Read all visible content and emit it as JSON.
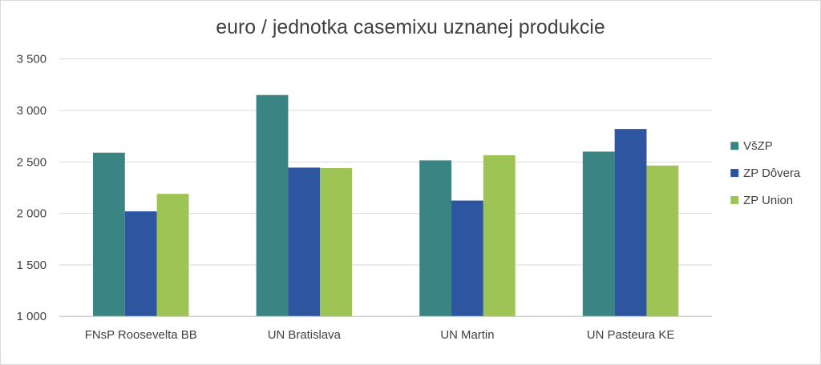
{
  "chart_data": {
    "type": "bar",
    "title": "euro / jednotka casemixu uznanej produkcie",
    "xlabel": "",
    "ylabel": "",
    "categories": [
      "FNsP Roosevelta BB",
      "UN Bratislava",
      "UN Martin",
      "UN Pasteura KE"
    ],
    "series": [
      {
        "name": "VšZP",
        "color": "#3a8583",
        "values": [
          2590,
          3150,
          2515,
          2600
        ]
      },
      {
        "name": "ZP Dôvera",
        "color": "#2e55a0",
        "values": [
          2020,
          2445,
          2125,
          2820
        ]
      },
      {
        "name": "ZP Union",
        "color": "#9dc455",
        "values": [
          2190,
          2440,
          2565,
          2465
        ]
      }
    ],
    "ylim": [
      1000,
      3500
    ],
    "yticks": [
      1000,
      1500,
      2000,
      2500,
      3000,
      3500
    ],
    "ytick_labels": [
      "1 000",
      "1 500",
      "2 000",
      "2 500",
      "3 000",
      "3 500"
    ],
    "grid": true,
    "legend_position": "right"
  }
}
